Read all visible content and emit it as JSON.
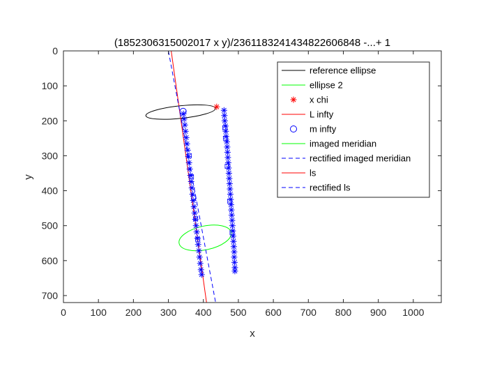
{
  "chart_data": {
    "type": "line",
    "title": "(1852306315002017 x y)/23611832414348226068​48 -...+ 1",
    "xlabel": "x",
    "ylabel": "y",
    "xlim": [
      0,
      1080
    ],
    "ylim": [
      0,
      720
    ],
    "y_reversed": true,
    "grid": false,
    "legend_location": "top-right",
    "x_ticks": [
      0,
      100,
      200,
      300,
      400,
      500,
      600,
      700,
      800,
      900,
      1000
    ],
    "y_ticks": [
      0,
      100,
      200,
      300,
      400,
      500,
      600,
      700
    ],
    "series": [
      {
        "name": "reference ellipse",
        "kind": "ellipse",
        "color": "#000000",
        "style": "solid",
        "center": [
          335,
          175
        ],
        "rx": 100,
        "ry": 18,
        "rotation_deg": -6
      },
      {
        "name": "ellipse 2",
        "kind": "ellipse",
        "color": "#00ff00",
        "style": "solid",
        "center": [
          405,
          535
        ],
        "rx": 76,
        "ry": 34,
        "rotation_deg": -12
      },
      {
        "name": "x chi",
        "kind": "marker",
        "marker": "asterisk",
        "color": "#ff0000",
        "points": [
          [
            438,
            160
          ]
        ]
      },
      {
        "name": "L infty",
        "kind": "line",
        "color": "#ff0000",
        "style": "solid",
        "points": [
          [
            308,
            0
          ],
          [
            409,
            720
          ]
        ]
      },
      {
        "name": "m infty",
        "kind": "marker",
        "marker": "circle",
        "color": "#0000ff",
        "points": [
          [
            342,
            173
          ]
        ]
      },
      {
        "name": "imaged meridian",
        "kind": "line",
        "color": "#00ff00",
        "style": "solid",
        "points": []
      },
      {
        "name": "rectified imaged meridian",
        "kind": "line",
        "color": "#0000ff",
        "style": "dashed",
        "points": [
          [
            300,
            0
          ],
          [
            435,
            720
          ]
        ]
      },
      {
        "name": "ls",
        "kind": "line",
        "color": "#ff0000",
        "style": "solid",
        "points": []
      },
      {
        "name": "rectified ls",
        "kind": "line",
        "color": "#0000ff",
        "style": "dashed",
        "points": []
      },
      {
        "name": "",
        "kind": "marker",
        "marker": "asterisk",
        "color": "#0000ff",
        "points": [
          [
            343,
            180
          ],
          [
            345,
            195
          ],
          [
            347,
            212
          ],
          [
            349,
            230
          ],
          [
            351,
            248
          ],
          [
            353,
            266
          ],
          [
            355,
            284
          ],
          [
            357,
            302
          ],
          [
            359,
            320
          ],
          [
            361,
            338
          ],
          [
            363,
            356
          ],
          [
            365,
            374
          ],
          [
            367,
            392
          ],
          [
            369,
            410
          ],
          [
            371,
            428
          ],
          [
            373,
            446
          ],
          [
            375,
            464
          ],
          [
            377,
            482
          ],
          [
            379,
            500
          ],
          [
            381,
            518
          ],
          [
            383,
            536
          ],
          [
            385,
            554
          ],
          [
            387,
            572
          ],
          [
            389,
            590
          ],
          [
            391,
            608
          ],
          [
            393,
            626
          ],
          [
            395,
            640
          ]
        ]
      },
      {
        "name": "",
        "kind": "marker",
        "marker": "asterisk",
        "color": "#0000ff",
        "points": [
          [
            459,
            170
          ],
          [
            460,
            185
          ],
          [
            461,
            200
          ],
          [
            463,
            215
          ],
          [
            464,
            230
          ],
          [
            465,
            245
          ],
          [
            467,
            260
          ],
          [
            468,
            275
          ],
          [
            469,
            290
          ],
          [
            470,
            305
          ],
          [
            471,
            320
          ],
          [
            472,
            335
          ],
          [
            473,
            350
          ],
          [
            474,
            365
          ],
          [
            475,
            380
          ],
          [
            476,
            395
          ],
          [
            477,
            410
          ],
          [
            478,
            425
          ],
          [
            479,
            440
          ],
          [
            480,
            455
          ],
          [
            481,
            470
          ],
          [
            482,
            485
          ],
          [
            483,
            500
          ],
          [
            484,
            515
          ],
          [
            485,
            530
          ],
          [
            486,
            545
          ],
          [
            487,
            560
          ],
          [
            488,
            575
          ],
          [
            488,
            590
          ],
          [
            489,
            605
          ],
          [
            490,
            620
          ],
          [
            490,
            630
          ]
        ]
      },
      {
        "name": "",
        "kind": "marker",
        "marker": "square",
        "color": "#0000ff",
        "points": [
          [
            360,
            300
          ],
          [
            366,
            360
          ],
          [
            372,
            420
          ],
          [
            378,
            480
          ],
          [
            384,
            540
          ],
          [
            461,
            220
          ],
          [
            463,
            250
          ],
          [
            468,
            330
          ],
          [
            475,
            430
          ],
          [
            482,
            520
          ]
        ]
      }
    ]
  }
}
